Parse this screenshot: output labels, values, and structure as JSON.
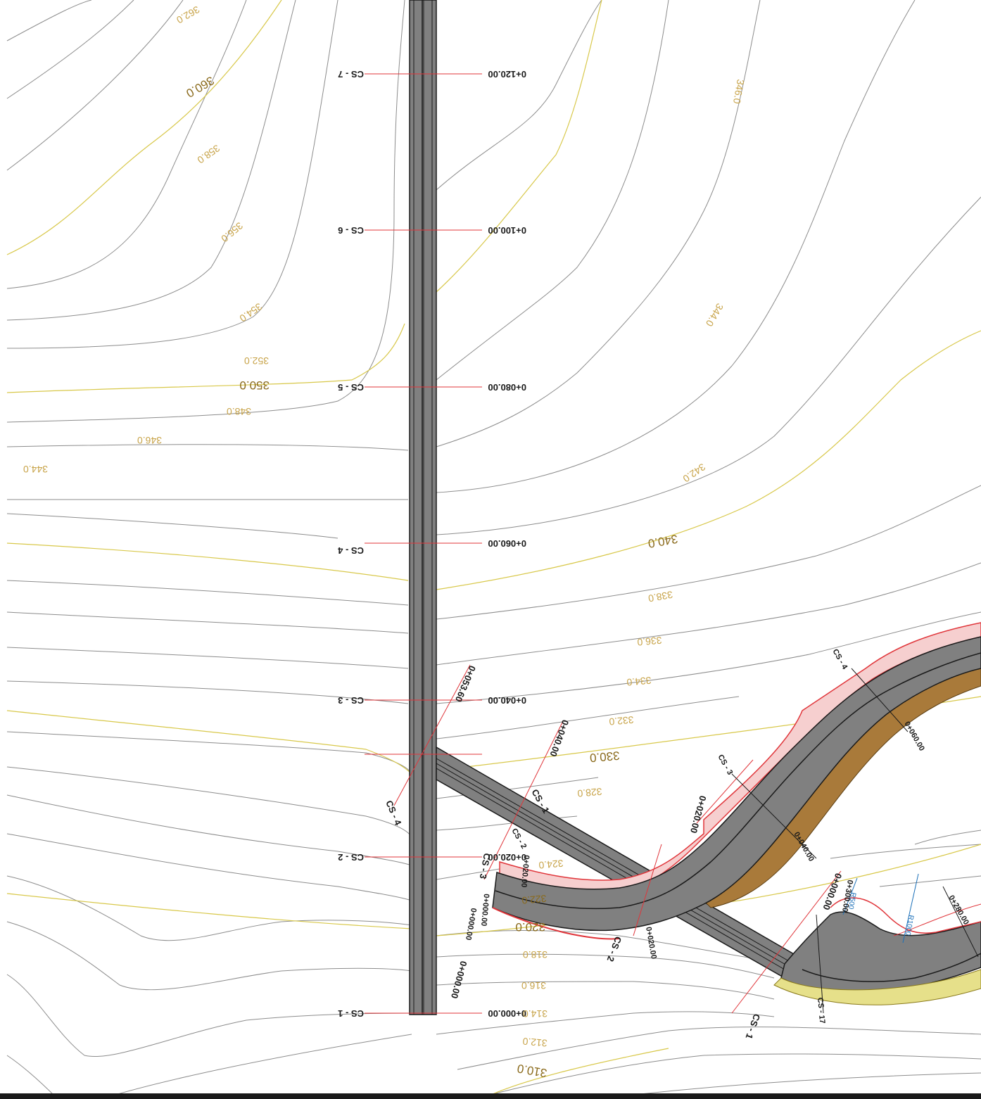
{
  "colors": {
    "contour_minor": "#8c8c8c",
    "contour_major": "#d8c84a",
    "contour_label": "#c8a44a",
    "contour_label_major": "#8a6a1c",
    "road_fill": "#808080",
    "road_edge": "#1a1a1a",
    "section_line": "#e0353a",
    "cut_slope": "#e0353a",
    "fill_slope": "#8a6a2a",
    "fill_slope_light": "#e6e08a",
    "annotation_blue": "#1a6fb8"
  },
  "main_road": {
    "cross_sections": [
      {
        "cs": "CS - 7",
        "chainage": "0+120.00"
      },
      {
        "cs": "CS - 6",
        "chainage": "0+100.00"
      },
      {
        "cs": "CS - 5",
        "chainage": "0+080.00"
      },
      {
        "cs": "CS - 4",
        "chainage": "0+060.00"
      },
      {
        "cs": "CS - 3",
        "chainage": "0+040.00"
      },
      {
        "cs": "CS - 2",
        "chainage": "0+020.00"
      },
      {
        "cs": "CS - 1",
        "chainage": "0+000.00"
      }
    ],
    "end_chainage": "0+053.60"
  },
  "contour_labels": [
    "362.0",
    "360.0",
    "358.0",
    "356.0",
    "354.0",
    "352.0",
    "350.0",
    "348.0",
    "346.0",
    "344.0",
    "346.0",
    "344.0",
    "342.0",
    "340.0",
    "338.0",
    "336.0",
    "334.0",
    "332.0",
    "330.0",
    "328.0",
    "324.0",
    "322.0",
    "320.0",
    "318.0",
    "316.0",
    "314.0",
    "312.0",
    "310.0"
  ],
  "branch_annotations": {
    "cs_labels": [
      "CS - 4",
      "CS - 1",
      "CS - 2",
      "CS - 3",
      "CS - 3",
      "CS - 4",
      "CS - 2",
      "CS - 1",
      "CS - 17"
    ],
    "chainages": [
      "0+040.00",
      "0+020.00",
      "0+000.00",
      "0+020.00",
      "0+000.00",
      "0+040.00",
      "0+060.00",
      "0+020.00",
      "0+000.00",
      "0+000.00",
      "0+300.00",
      "0+280.00"
    ],
    "radius_labels": [
      "R500",
      "R1000"
    ]
  }
}
